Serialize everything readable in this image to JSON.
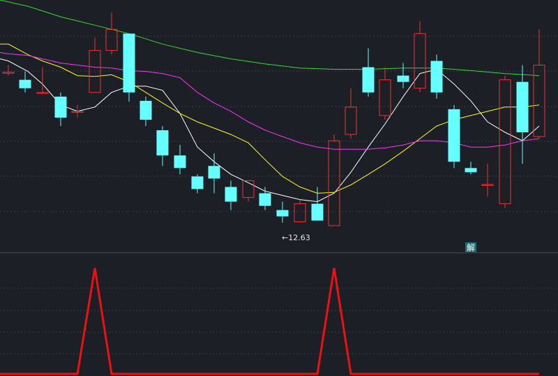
{
  "chart_data": [
    {
      "type": "candlestick",
      "panel": "main",
      "ylim": [
        11.4,
        17.4
      ],
      "grid": true,
      "candles": [
        {
          "x": 12,
          "o": 15.68,
          "c": 15.68,
          "h": 15.85,
          "l": 15.6,
          "up": true
        },
        {
          "x": 36,
          "o": 15.5,
          "c": 15.3,
          "h": 15.7,
          "l": 15.2,
          "up": false
        },
        {
          "x": 61,
          "o": 15.2,
          "c": 15.2,
          "h": 15.8,
          "l": 15.2,
          "up": true
        },
        {
          "x": 87,
          "o": 15.1,
          "c": 14.6,
          "h": 15.2,
          "l": 14.4,
          "up": false
        },
        {
          "x": 111,
          "o": 14.75,
          "c": 14.75,
          "h": 14.9,
          "l": 14.6,
          "up": true
        },
        {
          "x": 136,
          "o": 15.2,
          "c": 16.2,
          "h": 16.5,
          "l": 15.2,
          "up": true
        },
        {
          "x": 160,
          "o": 16.2,
          "c": 16.7,
          "h": 17.1,
          "l": 16.1,
          "up": true
        },
        {
          "x": 185,
          "o": 16.6,
          "c": 15.2,
          "h": 16.6,
          "l": 14.98,
          "up": false
        },
        {
          "x": 209,
          "o": 15.0,
          "c": 14.55,
          "h": 15.1,
          "l": 14.4,
          "up": false
        },
        {
          "x": 233,
          "o": 14.3,
          "c": 13.7,
          "h": 14.4,
          "l": 13.45,
          "up": false
        },
        {
          "x": 258,
          "o": 13.7,
          "c": 13.4,
          "h": 13.95,
          "l": 13.25,
          "up": false
        },
        {
          "x": 283,
          "o": 13.2,
          "c": 12.9,
          "h": 13.25,
          "l": 12.8,
          "up": false
        },
        {
          "x": 307,
          "o": 13.45,
          "c": 13.15,
          "h": 13.75,
          "l": 12.8,
          "up": false
        },
        {
          "x": 331,
          "o": 12.95,
          "c": 12.6,
          "h": 13.1,
          "l": 12.4,
          "up": false
        },
        {
          "x": 356,
          "o": 12.7,
          "c": 13.1,
          "h": 13.1,
          "l": 12.6,
          "up": true
        },
        {
          "x": 380,
          "o": 12.8,
          "c": 12.5,
          "h": 12.95,
          "l": 12.4,
          "up": false
        },
        {
          "x": 405,
          "o": 12.4,
          "c": 12.25,
          "h": 12.6,
          "l": 12.1,
          "up": false
        },
        {
          "x": 430,
          "o": 12.12,
          "c": 12.55,
          "h": 12.65,
          "l": 12.12,
          "up": true
        },
        {
          "x": 455,
          "o": 12.55,
          "c": 12.15,
          "h": 12.95,
          "l": 12.15,
          "up": false
        },
        {
          "x": 479,
          "o": 12.03,
          "c": 14.05,
          "h": 14.2,
          "l": 12.03,
          "up": true
        },
        {
          "x": 503,
          "o": 14.2,
          "c": 14.85,
          "h": 15.3,
          "l": 14.1,
          "up": true
        },
        {
          "x": 528,
          "o": 15.8,
          "c": 15.2,
          "h": 16.25,
          "l": 15.1,
          "up": false
        },
        {
          "x": 552,
          "o": 14.65,
          "c": 15.5,
          "h": 15.8,
          "l": 14.55,
          "up": true
        },
        {
          "x": 578,
          "o": 15.6,
          "c": 15.45,
          "h": 15.9,
          "l": 15.3,
          "up": false
        },
        {
          "x": 602,
          "o": 15.3,
          "c": 16.6,
          "h": 16.9,
          "l": 15.2,
          "up": true
        },
        {
          "x": 626,
          "o": 15.95,
          "c": 15.2,
          "h": 16.1,
          "l": 15.05,
          "up": false
        },
        {
          "x": 651,
          "o": 14.8,
          "c": 13.55,
          "h": 14.9,
          "l": 13.4,
          "up": false
        },
        {
          "x": 675,
          "o": 13.4,
          "c": 13.3,
          "h": 13.55,
          "l": 13.25,
          "up": false
        },
        {
          "x": 699,
          "o": 13.01,
          "c": 13.01,
          "h": 13.5,
          "l": 12.72,
          "up": true
        },
        {
          "x": 724,
          "o": 12.55,
          "c": 15.5,
          "h": 15.6,
          "l": 12.45,
          "up": true
        },
        {
          "x": 749,
          "o": 15.45,
          "c": 14.25,
          "h": 15.85,
          "l": 13.5,
          "up": false
        },
        {
          "x": 773,
          "o": 14.15,
          "c": 15.85,
          "h": 16.7,
          "l": 14.1,
          "up": true
        }
      ],
      "series": [
        {
          "color": "#ffffff",
          "points": [
            [
              0,
              16.0
            ],
            [
              12,
              15.95
            ],
            [
              40,
              15.7
            ],
            [
              61,
              15.4
            ],
            [
              87,
              14.9
            ],
            [
              111,
              14.75
            ],
            [
              136,
              14.85
            ],
            [
              160,
              15.2
            ],
            [
              185,
              15.35
            ],
            [
              209,
              15.35
            ],
            [
              233,
              15.25
            ],
            [
              258,
              14.7
            ],
            [
              283,
              13.9
            ],
            [
              307,
              13.55
            ],
            [
              331,
              13.25
            ],
            [
              356,
              13.05
            ],
            [
              380,
              12.85
            ],
            [
              405,
              12.75
            ],
            [
              430,
              12.65
            ],
            [
              455,
              12.6
            ],
            [
              479,
              12.8
            ],
            [
              503,
              13.3
            ],
            [
              528,
              13.9
            ],
            [
              552,
              14.45
            ],
            [
              578,
              15.1
            ],
            [
              602,
              15.65
            ],
            [
              626,
              15.75
            ],
            [
              651,
              15.4
            ],
            [
              675,
              15.0
            ],
            [
              699,
              14.5
            ],
            [
              724,
              14.25
            ],
            [
              749,
              14.05
            ],
            [
              773,
              14.4
            ]
          ]
        },
        {
          "color": "#ffff00",
          "points": [
            [
              0,
              16.35
            ],
            [
              12,
              16.35
            ],
            [
              40,
              16.1
            ],
            [
              61,
              15.95
            ],
            [
              87,
              15.8
            ],
            [
              111,
              15.6
            ],
            [
              136,
              15.58
            ],
            [
              160,
              15.62
            ],
            [
              185,
              15.45
            ],
            [
              209,
              15.2
            ],
            [
              233,
              14.95
            ],
            [
              258,
              14.7
            ],
            [
              283,
              14.5
            ],
            [
              307,
              14.35
            ],
            [
              331,
              14.2
            ],
            [
              356,
              14.0
            ],
            [
              380,
              13.6
            ],
            [
              405,
              13.2
            ],
            [
              430,
              12.95
            ],
            [
              455,
              12.8
            ],
            [
              479,
              12.82
            ],
            [
              503,
              13.0
            ],
            [
              528,
              13.25
            ],
            [
              552,
              13.5
            ],
            [
              578,
              13.8
            ],
            [
              602,
              14.1
            ],
            [
              626,
              14.4
            ],
            [
              651,
              14.55
            ],
            [
              675,
              14.65
            ],
            [
              699,
              14.75
            ],
            [
              724,
              14.85
            ],
            [
              749,
              14.85
            ],
            [
              773,
              14.9
            ]
          ]
        },
        {
          "color": "#ff33ff",
          "points": [
            [
              0,
              16.15
            ],
            [
              12,
              16.12
            ],
            [
              40,
              16.08
            ],
            [
              61,
              16.0
            ],
            [
              87,
              15.9
            ],
            [
              111,
              15.85
            ],
            [
              136,
              15.8
            ],
            [
              160,
              15.78
            ],
            [
              185,
              15.72
            ],
            [
              209,
              15.7
            ],
            [
              233,
              15.65
            ],
            [
              258,
              15.55
            ],
            [
              283,
              15.2
            ],
            [
              307,
              14.95
            ],
            [
              331,
              14.75
            ],
            [
              356,
              14.5
            ],
            [
              380,
              14.3
            ],
            [
              405,
              14.15
            ],
            [
              430,
              14.0
            ],
            [
              455,
              13.9
            ],
            [
              479,
              13.85
            ],
            [
              503,
              13.85
            ],
            [
              528,
              13.85
            ],
            [
              552,
              13.88
            ],
            [
              578,
              13.95
            ],
            [
              602,
              14.05
            ],
            [
              626,
              14.05
            ],
            [
              651,
              14.0
            ],
            [
              675,
              13.9
            ],
            [
              699,
              13.9
            ],
            [
              724,
              13.95
            ],
            [
              749,
              14.05
            ],
            [
              773,
              14.1
            ]
          ]
        },
        {
          "color": "#33dd33",
          "points": [
            [
              0,
              17.4
            ],
            [
              40,
              17.25
            ],
            [
              87,
              17.0
            ],
            [
              136,
              16.8
            ],
            [
              185,
              16.6
            ],
            [
              233,
              16.35
            ],
            [
              283,
              16.15
            ],
            [
              331,
              16.0
            ],
            [
              380,
              15.88
            ],
            [
              430,
              15.78
            ],
            [
              479,
              15.75
            ],
            [
              528,
              15.75
            ],
            [
              578,
              15.78
            ],
            [
              626,
              15.78
            ],
            [
              675,
              15.72
            ],
            [
              724,
              15.65
            ],
            [
              773,
              15.6
            ]
          ]
        }
      ],
      "annotations": [
        {
          "text": "←12.63",
          "x": 404,
          "y": 11.95
        }
      ]
    },
    {
      "type": "line",
      "panel": "indicator",
      "ylim": [
        0,
        1
      ],
      "grid": true,
      "series": [
        {
          "color": "#ee1111",
          "points": [
            [
              0,
              0
            ],
            [
              111,
              0
            ],
            [
              136,
              1
            ],
            [
              160,
              0
            ],
            [
              455,
              0
            ],
            [
              479,
              1
            ],
            [
              503,
              0
            ],
            [
              773,
              0
            ]
          ]
        }
      ]
    }
  ],
  "badge": {
    "text": "解"
  },
  "colors": {
    "up": "#ee3333",
    "down": "#66ffff",
    "background": "#1c1f26"
  }
}
